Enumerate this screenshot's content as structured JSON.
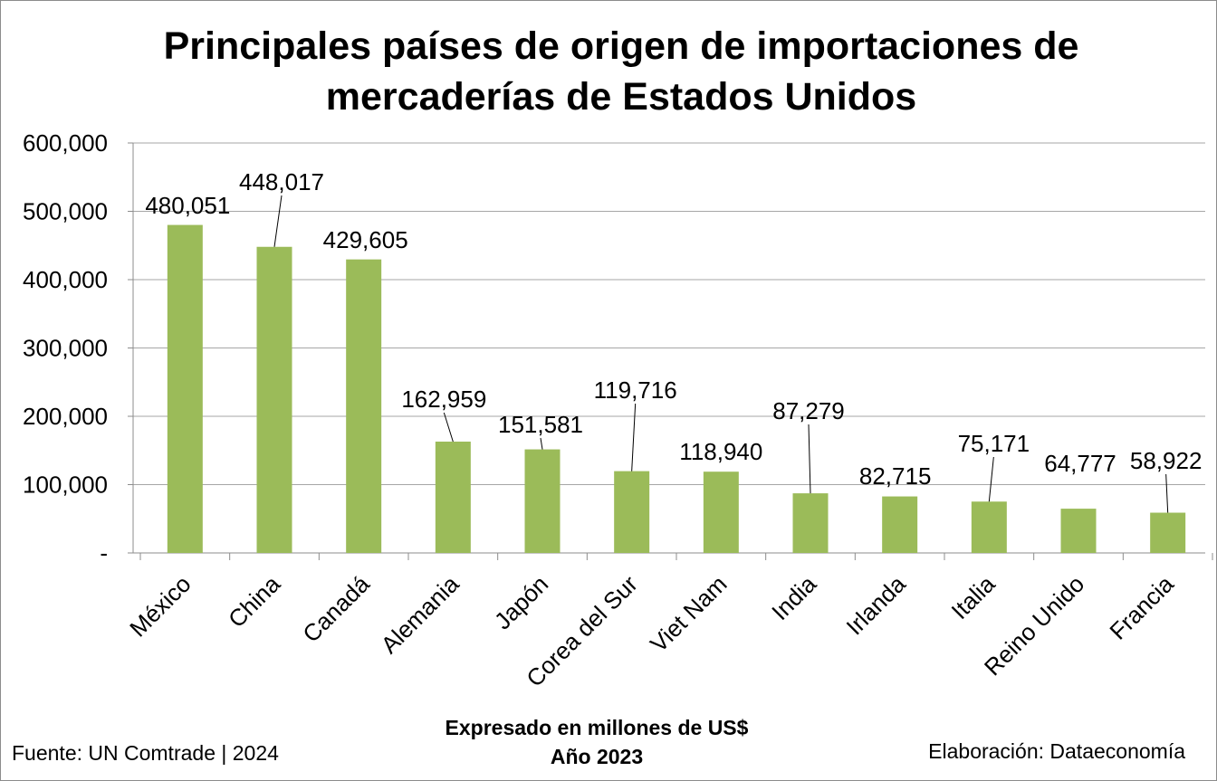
{
  "chart_data": {
    "type": "bar",
    "title": "Principales países de origen de importaciones de mercaderías de Estados Unidos",
    "categories": [
      "México",
      "China",
      "Canadá",
      "Alemania",
      "Japón",
      "Corea del Sur",
      "Viet Nam",
      "India",
      "Irlanda",
      "Italia",
      "Reino Unido",
      "Francia"
    ],
    "values": [
      480051,
      448017,
      429605,
      162959,
      151581,
      119716,
      118940,
      87279,
      82715,
      75171,
      64777,
      58922
    ],
    "value_labels": [
      "480,051",
      "448,017",
      "429,605",
      "162,959",
      "151,581",
      "119,716",
      "118,940",
      "87,279",
      "82,715",
      "75,171",
      "64,777",
      "58,922"
    ],
    "ylim": [
      0,
      600000
    ],
    "y_ticks": [
      0,
      100000,
      200000,
      300000,
      400000,
      500000,
      600000
    ],
    "y_tick_labels": [
      "-",
      "100,000",
      "200,000",
      "300,000",
      "400,000",
      "500,000",
      "600,000"
    ],
    "grid": true,
    "bar_color": "#9bbb59",
    "subtitle_lines": [
      "Expresado en millones de US$",
      "Año 2023"
    ]
  },
  "footer": {
    "source": "Fuente: UN Comtrade | 2024",
    "credit": "Elaboración: Dataeconomía"
  }
}
